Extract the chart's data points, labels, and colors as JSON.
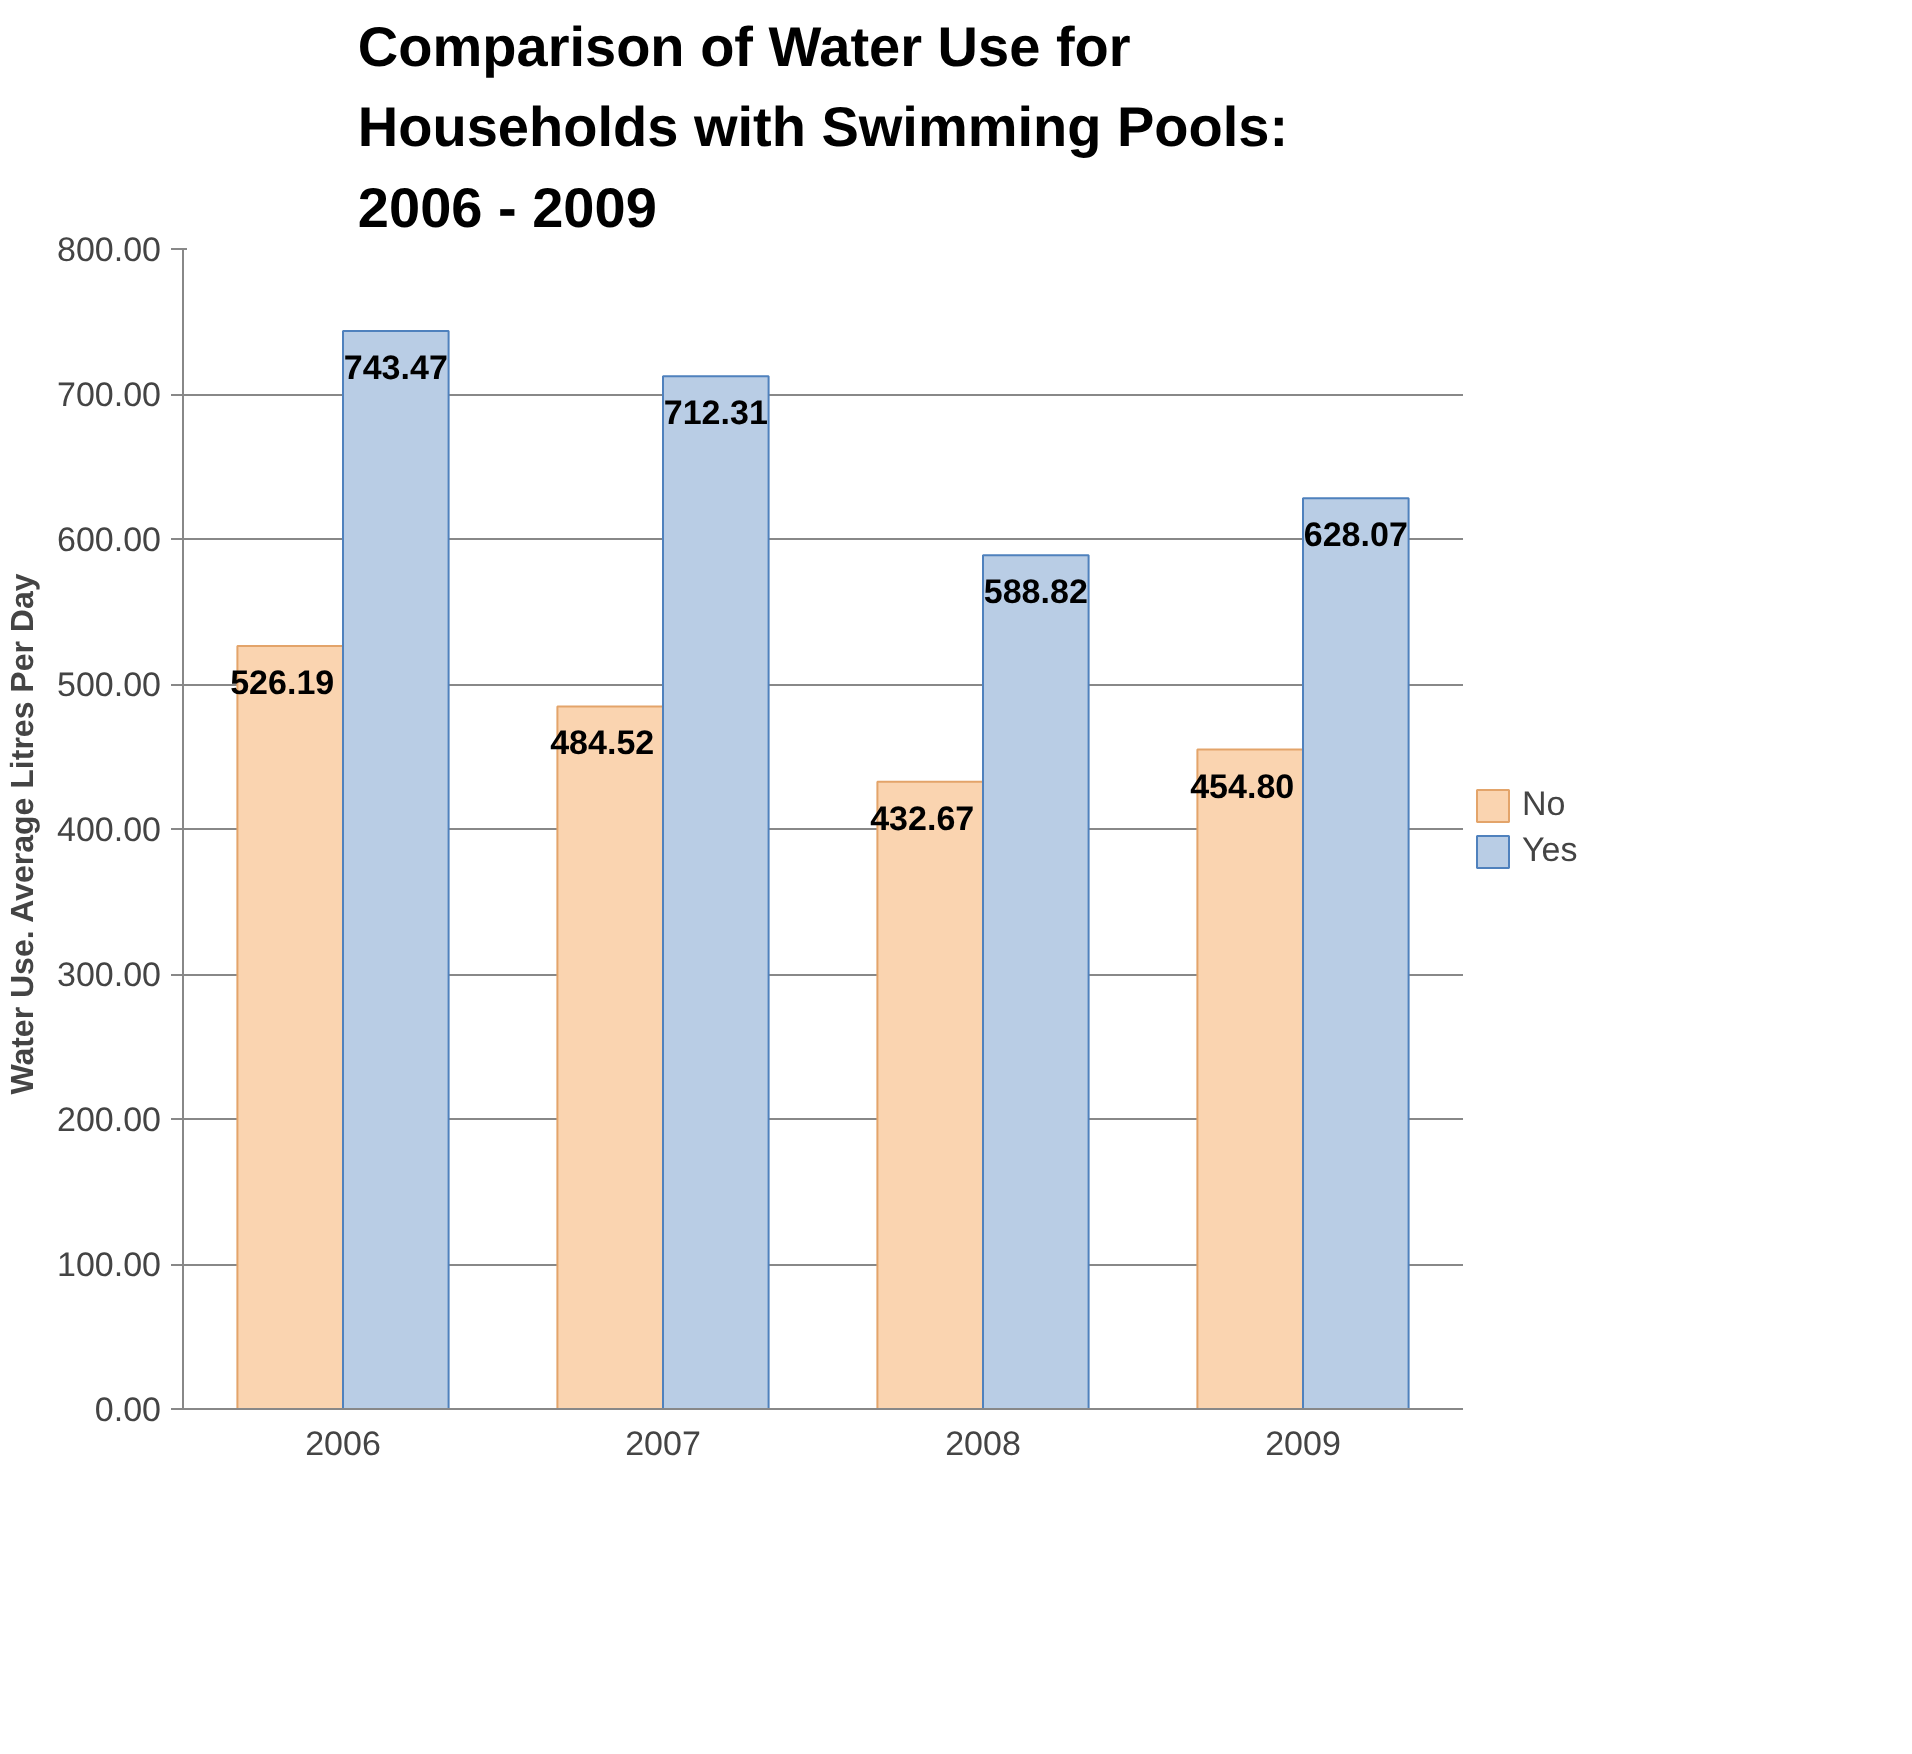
{
  "chart_data": {
    "type": "bar",
    "title": "Comparison of Water Use for Households with Swimming Pools: 2006 - 2009",
    "ylabel": "Water Use.  Average Litres Per Day",
    "categories": [
      "2006",
      "2007",
      "2008",
      "2009"
    ],
    "series": [
      {
        "name": "No",
        "color": "#fad4b0",
        "values": [
          526.19,
          484.52,
          432.67,
          454.8
        ],
        "value_labels": [
          "526.19",
          "484.52",
          "432.67",
          "454.80"
        ]
      },
      {
        "name": "Yes",
        "color": "#b9cde5",
        "values": [
          743.47,
          712.31,
          588.82,
          628.07
        ],
        "value_labels": [
          "743.47",
          "712.31",
          "588.82",
          "628.07"
        ]
      }
    ],
    "ylim": [
      0,
      800
    ],
    "yticks": [
      {
        "value": 0,
        "label": "0.00"
      },
      {
        "value": 100,
        "label": "100.00"
      },
      {
        "value": 200,
        "label": "200.00"
      },
      {
        "value": 300,
        "label": "300.00"
      },
      {
        "value": 400,
        "label": "400.00"
      },
      {
        "value": 500,
        "label": "500.00"
      },
      {
        "value": 600,
        "label": "600.00"
      },
      {
        "value": 700,
        "label": "700.00"
      },
      {
        "value": 800,
        "label": "800.00"
      }
    ],
    "grid": "y",
    "legend": "right"
  }
}
